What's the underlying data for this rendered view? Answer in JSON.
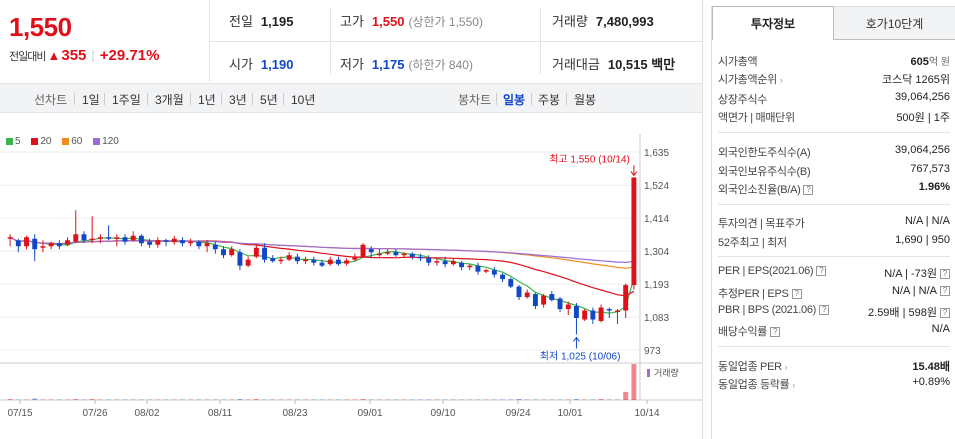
{
  "price": {
    "current": "1,550",
    "change_label": "전일대비",
    "change_value": "355",
    "change_pct": "+29.71%"
  },
  "stats": {
    "prev_label": "전일",
    "prev_value": "1,195",
    "high_label": "고가",
    "high_value": "1,550",
    "high_sub": "(상한가 1,550)",
    "volume_label": "거래량",
    "volume_value": "7,480,993",
    "open_label": "시가",
    "open_value": "1,190",
    "low_label": "저가",
    "low_value": "1,175",
    "low_sub": "(하한가 840)",
    "amount_label": "거래대금",
    "amount_value": "10,515",
    "amount_unit": "백만"
  },
  "toolbar": {
    "line_label": "선차트",
    "periods": [
      "1일",
      "1주일",
      "3개월",
      "1년",
      "3년",
      "5년",
      "10년"
    ],
    "candle_label": "봉차트",
    "candles": [
      "일봉",
      "주봉",
      "월봉"
    ],
    "active_candle": "일봉"
  },
  "chart_data": {
    "type": "candlestick",
    "legend": [
      {
        "name": "5",
        "color": "#3bb54a"
      },
      {
        "name": "20",
        "color": "#e0101a"
      },
      {
        "name": "60",
        "color": "#f08c1e"
      },
      {
        "name": "120",
        "color": "#9b6bd6"
      }
    ],
    "y_ticks": [
      "1,635",
      "1,524",
      "1,414",
      "1,304",
      "1,193",
      "1,083",
      "973"
    ],
    "x_ticks": [
      "07/15",
      "07/26",
      "08/02",
      "08/11",
      "08/23",
      "09/01",
      "09/10",
      "09/24",
      "10/01",
      "10/14"
    ],
    "high_annotation": "최고 1,550 (10/14)",
    "low_annotation": "최저 1,025 (10/06)",
    "volume_label": "거래량",
    "up_color": "#e0101a",
    "down_color": "#1248c7",
    "candles": [
      {
        "o": 1345,
        "c": 1350,
        "h": 1360,
        "l": 1320
      },
      {
        "o": 1340,
        "c": 1320,
        "h": 1345,
        "l": 1300
      },
      {
        "o": 1320,
        "c": 1350,
        "h": 1355,
        "l": 1310
      },
      {
        "o": 1345,
        "c": 1310,
        "h": 1360,
        "l": 1270
      },
      {
        "o": 1315,
        "c": 1320,
        "h": 1340,
        "l": 1300
      },
      {
        "o": 1320,
        "c": 1330,
        "h": 1335,
        "l": 1310
      },
      {
        "o": 1330,
        "c": 1320,
        "h": 1340,
        "l": 1310
      },
      {
        "o": 1325,
        "c": 1340,
        "h": 1350,
        "l": 1320
      },
      {
        "o": 1335,
        "c": 1360,
        "h": 1440,
        "l": 1330
      },
      {
        "o": 1360,
        "c": 1340,
        "h": 1370,
        "l": 1330
      },
      {
        "o": 1340,
        "c": 1345,
        "h": 1420,
        "l": 1330
      },
      {
        "o": 1345,
        "c": 1350,
        "h": 1360,
        "l": 1330
      },
      {
        "o": 1350,
        "c": 1345,
        "h": 1390,
        "l": 1340
      },
      {
        "o": 1345,
        "c": 1350,
        "h": 1360,
        "l": 1320
      },
      {
        "o": 1350,
        "c": 1335,
        "h": 1360,
        "l": 1325
      },
      {
        "o": 1340,
        "c": 1355,
        "h": 1370,
        "l": 1335
      },
      {
        "o": 1355,
        "c": 1330,
        "h": 1360,
        "l": 1320
      },
      {
        "o": 1335,
        "c": 1325,
        "h": 1345,
        "l": 1315
      },
      {
        "o": 1325,
        "c": 1340,
        "h": 1350,
        "l": 1315
      },
      {
        "o": 1340,
        "c": 1335,
        "h": 1345,
        "l": 1320
      },
      {
        "o": 1335,
        "c": 1345,
        "h": 1355,
        "l": 1325
      },
      {
        "o": 1340,
        "c": 1330,
        "h": 1350,
        "l": 1320
      },
      {
        "o": 1330,
        "c": 1335,
        "h": 1345,
        "l": 1320
      },
      {
        "o": 1335,
        "c": 1320,
        "h": 1340,
        "l": 1310
      },
      {
        "o": 1320,
        "c": 1330,
        "h": 1340,
        "l": 1300
      },
      {
        "o": 1325,
        "c": 1310,
        "h": 1335,
        "l": 1295
      },
      {
        "o": 1310,
        "c": 1290,
        "h": 1320,
        "l": 1280
      },
      {
        "o": 1290,
        "c": 1310,
        "h": 1320,
        "l": 1285
      },
      {
        "o": 1300,
        "c": 1255,
        "h": 1310,
        "l": 1240
      },
      {
        "o": 1255,
        "c": 1275,
        "h": 1285,
        "l": 1250
      },
      {
        "o": 1285,
        "c": 1315,
        "h": 1325,
        "l": 1280
      },
      {
        "o": 1315,
        "c": 1275,
        "h": 1330,
        "l": 1265
      },
      {
        "o": 1280,
        "c": 1270,
        "h": 1290,
        "l": 1265
      },
      {
        "o": 1270,
        "c": 1275,
        "h": 1285,
        "l": 1260
      },
      {
        "o": 1275,
        "c": 1290,
        "h": 1300,
        "l": 1270
      },
      {
        "o": 1285,
        "c": 1270,
        "h": 1295,
        "l": 1260
      },
      {
        "o": 1270,
        "c": 1275,
        "h": 1285,
        "l": 1260
      },
      {
        "o": 1275,
        "c": 1265,
        "h": 1285,
        "l": 1255
      },
      {
        "o": 1265,
        "c": 1255,
        "h": 1275,
        "l": 1250
      },
      {
        "o": 1260,
        "c": 1275,
        "h": 1285,
        "l": 1255
      },
      {
        "o": 1275,
        "c": 1260,
        "h": 1285,
        "l": 1255
      },
      {
        "o": 1262,
        "c": 1272,
        "h": 1280,
        "l": 1255
      },
      {
        "o": 1275,
        "c": 1285,
        "h": 1295,
        "l": 1270
      },
      {
        "o": 1285,
        "c": 1325,
        "h": 1330,
        "l": 1280
      },
      {
        "o": 1310,
        "c": 1300,
        "h": 1320,
        "l": 1280
      },
      {
        "o": 1290,
        "c": 1295,
        "h": 1310,
        "l": 1285
      },
      {
        "o": 1295,
        "c": 1300,
        "h": 1310,
        "l": 1290
      },
      {
        "o": 1300,
        "c": 1290,
        "h": 1310,
        "l": 1285
      },
      {
        "o": 1290,
        "c": 1295,
        "h": 1300,
        "l": 1280
      },
      {
        "o": 1295,
        "c": 1285,
        "h": 1300,
        "l": 1275
      },
      {
        "o": 1285,
        "c": 1280,
        "h": 1295,
        "l": 1270
      },
      {
        "o": 1280,
        "c": 1265,
        "h": 1290,
        "l": 1255
      },
      {
        "o": 1265,
        "c": 1270,
        "h": 1280,
        "l": 1255
      },
      {
        "o": 1270,
        "c": 1260,
        "h": 1285,
        "l": 1250
      },
      {
        "o": 1260,
        "c": 1270,
        "h": 1280,
        "l": 1255
      },
      {
        "o": 1265,
        "c": 1250,
        "h": 1270,
        "l": 1240
      },
      {
        "o": 1250,
        "c": 1255,
        "h": 1260,
        "l": 1240
      },
      {
        "o": 1255,
        "c": 1235,
        "h": 1265,
        "l": 1225
      },
      {
        "o": 1235,
        "c": 1240,
        "h": 1245,
        "l": 1230
      },
      {
        "o": 1240,
        "c": 1225,
        "h": 1250,
        "l": 1215
      },
      {
        "o": 1225,
        "c": 1210,
        "h": 1230,
        "l": 1200
      },
      {
        "o": 1210,
        "c": 1185,
        "h": 1215,
        "l": 1180
      },
      {
        "o": 1185,
        "c": 1150,
        "h": 1190,
        "l": 1140
      },
      {
        "o": 1150,
        "c": 1165,
        "h": 1175,
        "l": 1145
      },
      {
        "o": 1160,
        "c": 1120,
        "h": 1165,
        "l": 1110
      },
      {
        "o": 1125,
        "c": 1155,
        "h": 1160,
        "l": 1115
      },
      {
        "o": 1160,
        "c": 1140,
        "h": 1170,
        "l": 1135
      },
      {
        "o": 1145,
        "c": 1110,
        "h": 1150,
        "l": 1100
      },
      {
        "o": 1110,
        "c": 1125,
        "h": 1135,
        "l": 1090
      },
      {
        "o": 1120,
        "c": 1080,
        "h": 1130,
        "l": 1025
      },
      {
        "o": 1075,
        "c": 1105,
        "h": 1110,
        "l": 1070
      },
      {
        "o": 1105,
        "c": 1075,
        "h": 1115,
        "l": 1060
      },
      {
        "o": 1070,
        "c": 1115,
        "h": 1125,
        "l": 1065
      },
      {
        "o": 1110,
        "c": 1105,
        "h": 1115,
        "l": 1080
      },
      {
        "o": 1100,
        "c": 1105,
        "h": 1110,
        "l": 1060
      },
      {
        "o": 1105,
        "c": 1190,
        "h": 1195,
        "l": 1080
      },
      {
        "o": 1190,
        "c": 1550,
        "h": 1550,
        "l": 1175
      }
    ],
    "volume": [
      2,
      1,
      1,
      3,
      1,
      1,
      1,
      1,
      2,
      1,
      2,
      1,
      1,
      1,
      1,
      1,
      1,
      1,
      1,
      1,
      1,
      1,
      1,
      1,
      1,
      1,
      1,
      1,
      2,
      1,
      2,
      1,
      1,
      1,
      1,
      1,
      1,
      1,
      1,
      1,
      1,
      1,
      1,
      2,
      1,
      1,
      1,
      1,
      1,
      1,
      1,
      1,
      1,
      1,
      1,
      1,
      1,
      1,
      1,
      1,
      1,
      1,
      2,
      1,
      1,
      1,
      1,
      1,
      1,
      2,
      1,
      1,
      2,
      1,
      1,
      18,
      80
    ]
  },
  "panel": {
    "tab_active": "투자정보",
    "tab_inactive": "호가10단계",
    "rows": {
      "mktcap_label": "시가총액",
      "mktcap_value": "605",
      "mktcap_unit": "억 원",
      "mktcap_rank_label": "시가총액순위",
      "mktcap_rank_value": "코스닥 1265위",
      "shares_label": "상장주식수",
      "shares_value": "39,064,256",
      "par_label": "액면가 | 매매단위",
      "par_value": "500원 | 1주",
      "foreign_limit_label": "외국인한도주식수(A)",
      "foreign_limit_value": "39,064,256",
      "foreign_hold_label": "외국인보유주식수(B)",
      "foreign_hold_value": "767,573",
      "foreign_ratio_label": "외국인소진율(B/A)",
      "foreign_ratio_value": "1.96%",
      "opinion_label": "투자의견 | 목표주가",
      "opinion_value": "N/A | N/A",
      "w52_label": "52주최고 | 최저",
      "w52_value": "1,690 | 950",
      "per_label": "PER | EPS(2021.06)",
      "per_value": "N/A | -73원",
      "est_per_label": "추정PER | EPS",
      "est_per_value": "N/A | N/A",
      "pbr_label": "PBR | BPS (2021.06)",
      "pbr_value": "2.59배 | 598원",
      "div_label": "배당수익률",
      "div_value": "N/A",
      "ind_per_label": "동일업종 PER",
      "ind_per_value": "15.48배",
      "ind_chg_label": "동일업종 등락률",
      "ind_chg_value": "+0.89%"
    }
  }
}
